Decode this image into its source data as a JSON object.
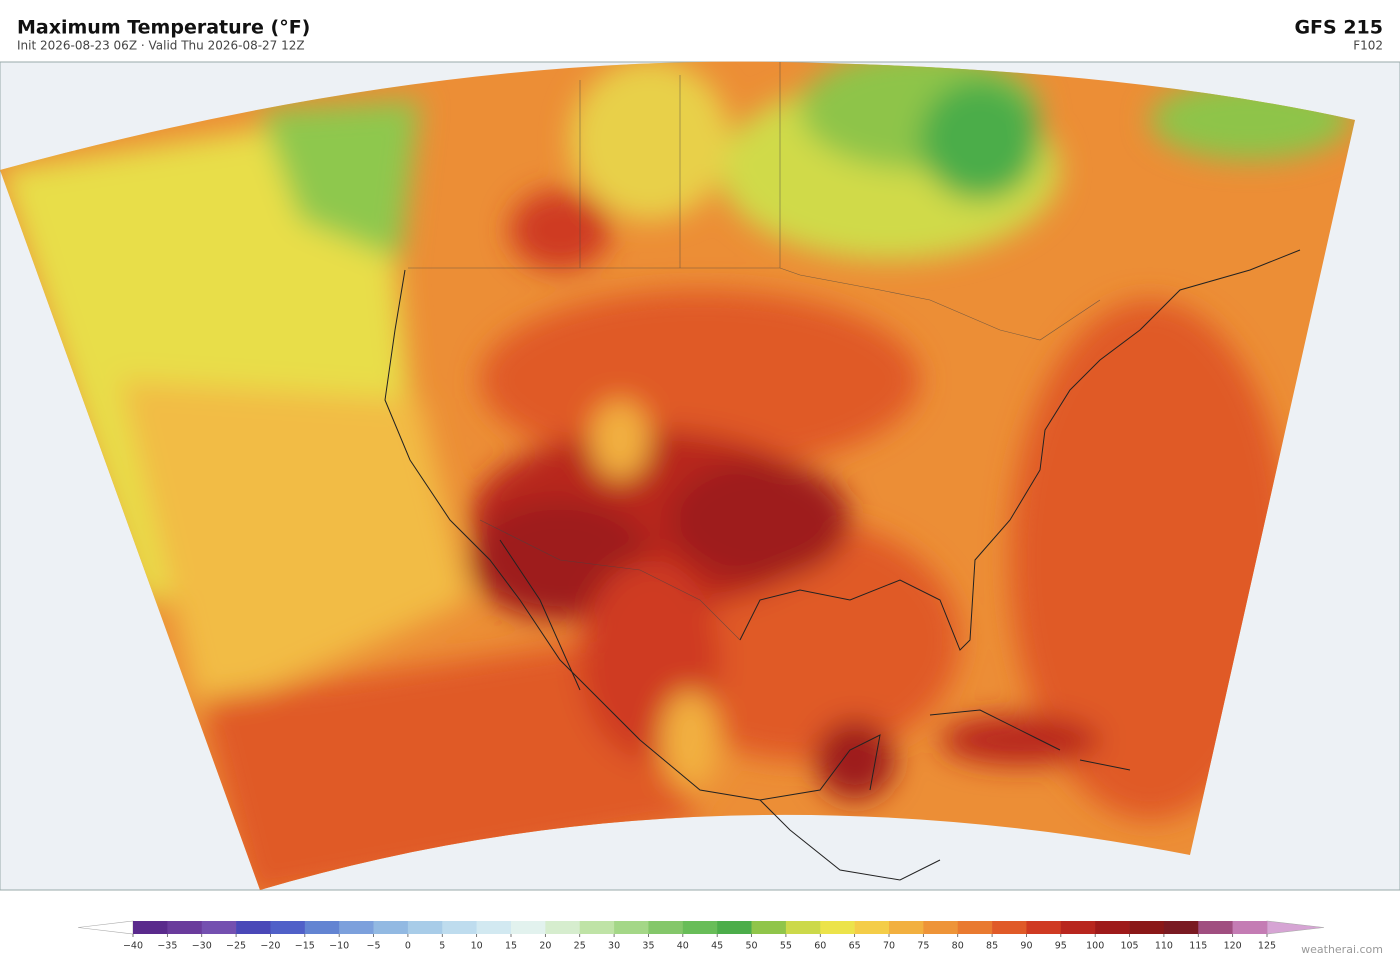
{
  "header": {
    "title": "Maximum Temperature  (°F)",
    "subtitle": "Init 2026-08-23 06Z   ·   Valid Thu 2026-08-27 12Z",
    "model": "GFS  215",
    "forecast_hour": "F102"
  },
  "colorbar": {
    "ticks": [
      {
        "value": -40,
        "label": "−40"
      },
      {
        "value": -35,
        "label": "−35"
      },
      {
        "value": -30,
        "label": "−30"
      },
      {
        "value": -25,
        "label": "−25"
      },
      {
        "value": -20,
        "label": "−20"
      },
      {
        "value": -15,
        "label": "−15"
      },
      {
        "value": -10,
        "label": "−10"
      },
      {
        "value": -5,
        "label": "−5"
      },
      0,
      5,
      10,
      15,
      20,
      25,
      30,
      35,
      40,
      45,
      50,
      55,
      60,
      65,
      70,
      75,
      80,
      85,
      90,
      95,
      100,
      105,
      110,
      115,
      120,
      125
    ],
    "colors": [
      "#5a2a8c",
      "#6a3b9c",
      "#7450b0",
      "#4a48b8",
      "#5060c8",
      "#6384d2",
      "#7ca0dc",
      "#92b9e2",
      "#a8cce8",
      "#bedcee",
      "#d2e9f1",
      "#e2f2ee",
      "#d6edce",
      "#bfe3a6",
      "#a4d787",
      "#84c76a",
      "#68bd58",
      "#4cad4a",
      "#90c54a",
      "#ccd94a",
      "#ece34a",
      "#f4cd48",
      "#f2b040",
      "#ee9438",
      "#e97a30",
      "#e05a28",
      "#cf3a22",
      "#b8261e",
      "#9e1a1a",
      "#8a1818",
      "#7a1a22",
      "#a04e80",
      "#c47cb4"
    ],
    "under_color": "#ffffff",
    "over_color": "#d6a4d4"
  },
  "credit": "weatherai.com"
}
